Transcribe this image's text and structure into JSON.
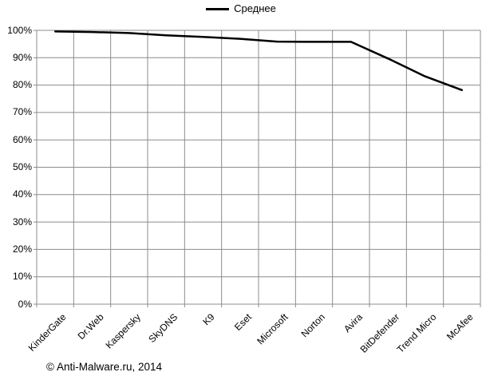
{
  "chart_data": {
    "type": "line",
    "title": "",
    "xlabel": "",
    "ylabel": "",
    "categories": [
      "KinderGate",
      "Dr.Web",
      "Kaspersky",
      "SkyDNS",
      "K9",
      "Eset",
      "Microsoft",
      "Norton",
      "Avira",
      "BitDefender",
      "Trend Micro",
      "McAfee"
    ],
    "series": [
      {
        "name": "Среднее",
        "values": [
          99.6,
          99.4,
          99.0,
          98.2,
          97.6,
          96.9,
          95.9,
          95.8,
          95.8,
          89.7,
          83.2,
          78.2
        ]
      }
    ],
    "ylim": [
      0,
      100
    ],
    "y_tick_labels": [
      "0%",
      "10%",
      "20%",
      "30%",
      "40%",
      "50%",
      "60%",
      "70%",
      "80%",
      "90%",
      "100%"
    ],
    "grid": true,
    "legend_position": "top-center",
    "line_color": "#000000",
    "gridline_color": "#8c8c8c",
    "text_color": "#000000"
  },
  "footer": {
    "copyright": "© Anti-Malware.ru, 2014"
  }
}
